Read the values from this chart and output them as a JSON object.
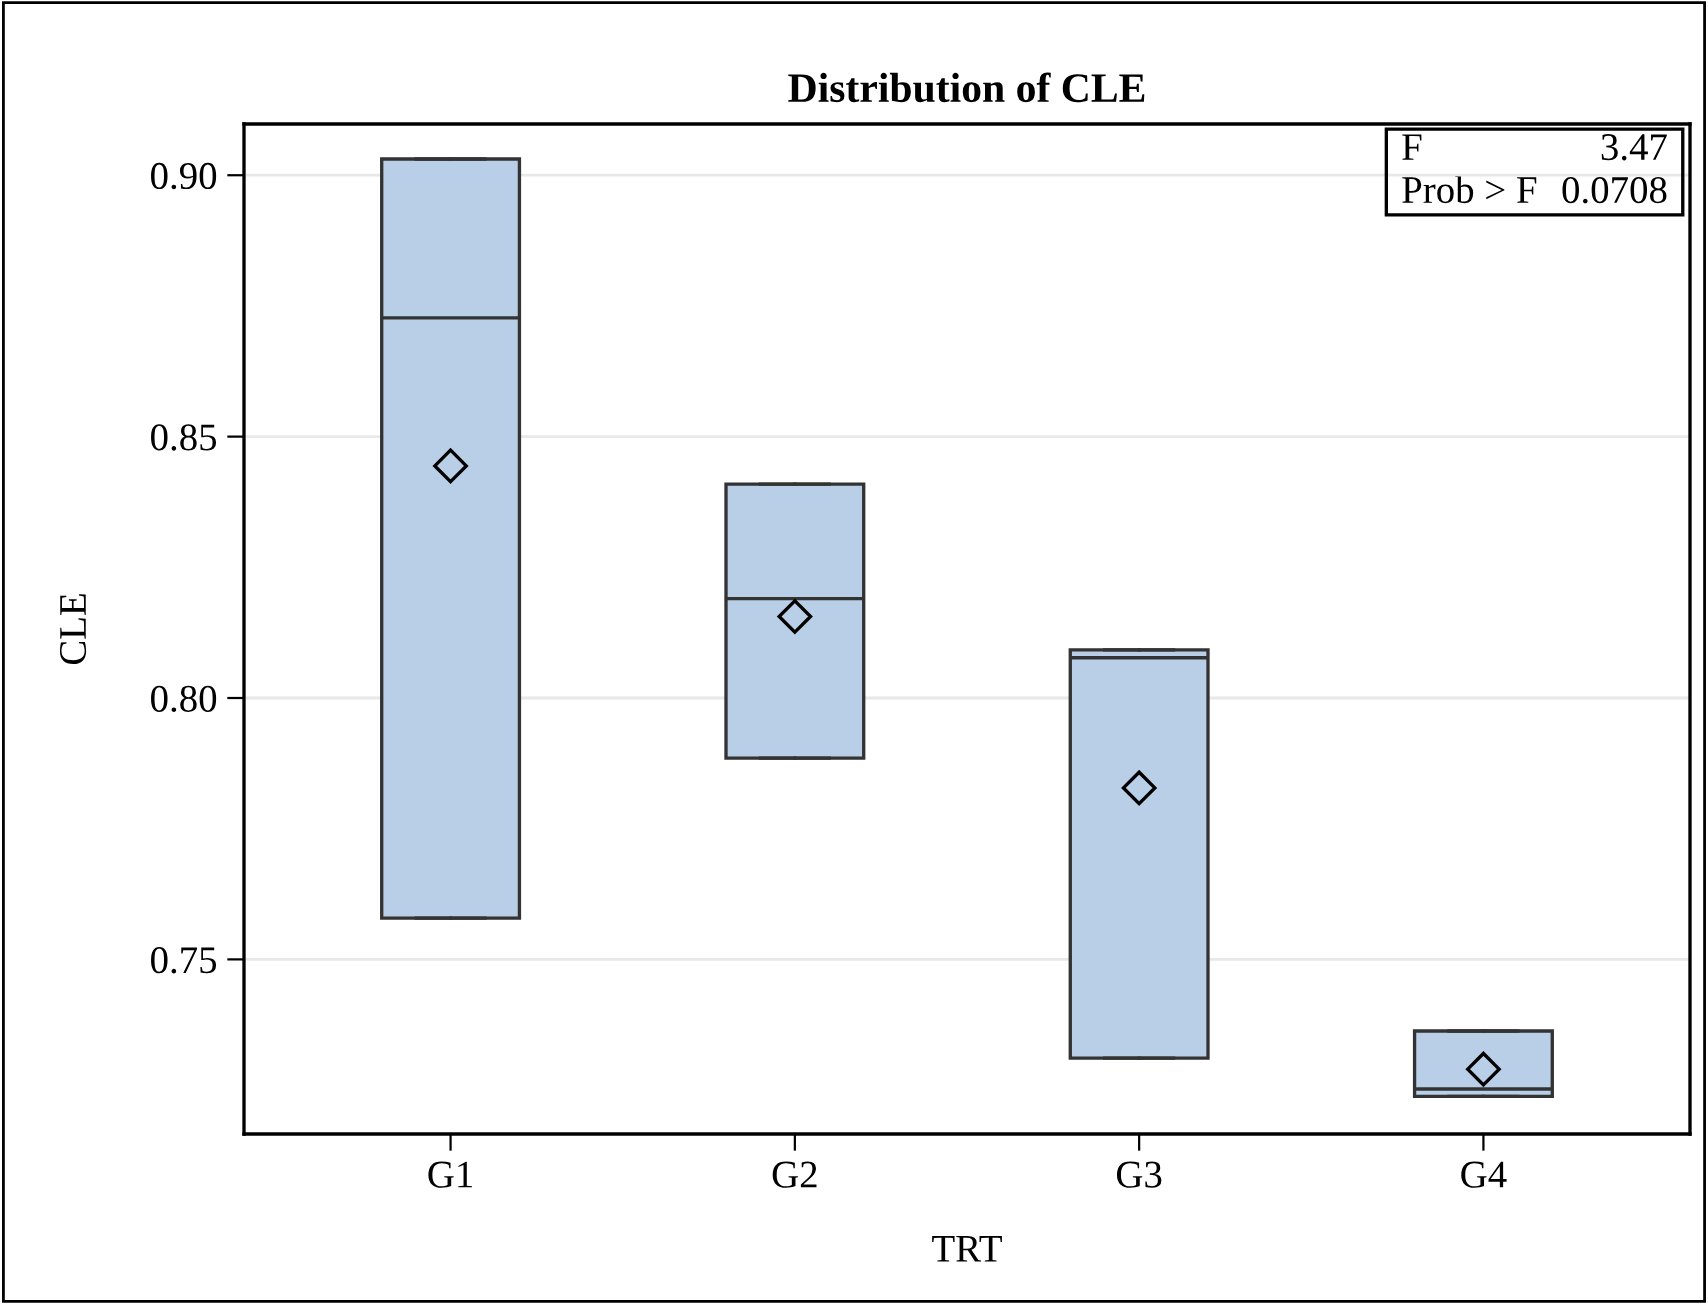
{
  "chart_data": {
    "type": "box",
    "title": "Distribution of CLE",
    "xlabel": "TRT",
    "ylabel": "CLE",
    "categories": [
      "G1",
      "G2",
      "G3",
      "G4"
    ],
    "boxes": [
      {
        "low": 0.7579,
        "q1": 0.7579,
        "median": 0.8727,
        "q3": 0.9031,
        "high": 0.9031,
        "mean": 0.8444
      },
      {
        "low": 0.7885,
        "q1": 0.7885,
        "median": 0.819,
        "q3": 0.8409,
        "high": 0.8409,
        "mean": 0.8156
      },
      {
        "low": 0.7311,
        "q1": 0.7311,
        "median": 0.8077,
        "q3": 0.8092,
        "high": 0.8092,
        "mean": 0.7828
      },
      {
        "low": 0.7238,
        "q1": 0.7238,
        "median": 0.7252,
        "q3": 0.7363,
        "high": 0.7363,
        "mean": 0.729
      }
    ],
    "color": "#b9cfe7",
    "ylim": [
      0.7166,
      0.9098
    ],
    "yticks": [
      {
        "value": 0.75,
        "label": "0.75"
      },
      {
        "value": 0.8,
        "label": "0.80"
      },
      {
        "value": 0.85,
        "label": "0.85"
      },
      {
        "value": 0.9,
        "label": "0.90"
      }
    ],
    "grid": "y",
    "marker": "diamond",
    "annotations": [
      "F",
      "3.47",
      "Prob > F",
      "0.0708"
    ]
  }
}
